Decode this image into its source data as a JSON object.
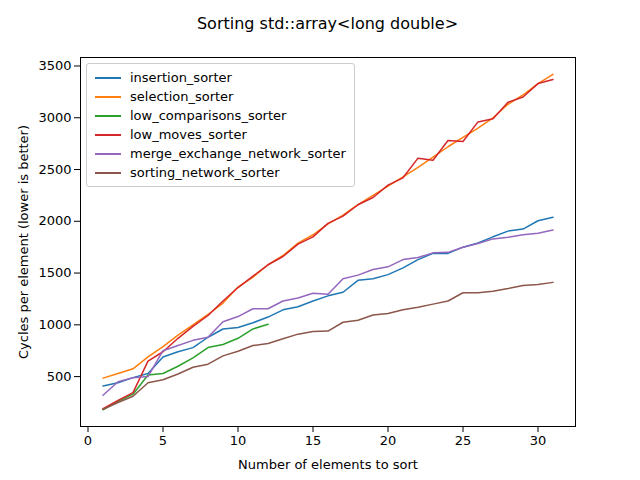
{
  "chart_data": {
    "type": "line",
    "title": "Sorting std::array<long double>",
    "x_label": "Number of elements to sort",
    "y_label": "Cycles per element (lower is better)",
    "x": [
      1,
      2,
      3,
      4,
      5,
      6,
      7,
      8,
      9,
      10,
      11,
      12,
      13,
      14,
      15,
      16,
      17,
      18,
      19,
      20,
      21,
      22,
      23,
      24,
      25,
      26,
      27,
      28,
      29,
      30,
      31
    ],
    "series": [
      {
        "name": "insertion_sorter",
        "color": "#1f77b4",
        "values": [
          410,
          440,
          490,
          530,
          690,
          740,
          780,
          880,
          960,
          975,
          1020,
          1075,
          1145,
          1175,
          1230,
          1280,
          1315,
          1430,
          1445,
          1485,
          1550,
          1630,
          1690,
          1690,
          1750,
          1790,
          1850,
          1905,
          1925,
          2005,
          2040
        ]
      },
      {
        "name": "selection_sorter",
        "color": "#ff7f0e",
        "values": [
          485,
          530,
          575,
          690,
          790,
          900,
          1000,
          1100,
          1210,
          1365,
          1460,
          1580,
          1670,
          1790,
          1870,
          1975,
          2060,
          2160,
          2250,
          2340,
          2430,
          2520,
          2620,
          2720,
          2810,
          2900,
          3000,
          3130,
          3220,
          3330,
          3420
        ]
      },
      {
        "name": "low_comparisons_sorter",
        "color": "#2ca02c",
        "values": [
          180,
          260,
          330,
          515,
          530,
          600,
          680,
          780,
          810,
          870,
          960,
          1005,
          null,
          null,
          null,
          null,
          null,
          null,
          null,
          null,
          null,
          null,
          null,
          null,
          null,
          null,
          null,
          null,
          null,
          null,
          null
        ]
      },
      {
        "name": "low_moves_sorter",
        "color": "#d62728",
        "values": [
          190,
          270,
          345,
          650,
          740,
          870,
          985,
          1090,
          1230,
          1360,
          1470,
          1580,
          1660,
          1780,
          1850,
          1980,
          2050,
          2160,
          2230,
          2350,
          2420,
          2610,
          2590,
          2780,
          2770,
          2960,
          2990,
          3150,
          3200,
          3330,
          3370
        ]
      },
      {
        "name": "merge_exchange_network_sorter",
        "color": "#9467bd",
        "values": [
          320,
          450,
          490,
          500,
          750,
          800,
          850,
          880,
          1030,
          1080,
          1155,
          1155,
          1230,
          1260,
          1305,
          1295,
          1445,
          1480,
          1535,
          1560,
          1630,
          1650,
          1695,
          1700,
          1750,
          1785,
          1830,
          1845,
          1870,
          1885,
          1915
        ]
      },
      {
        "name": "sorting_network_sorter",
        "color": "#8c564b",
        "values": [
          185,
          250,
          310,
          440,
          470,
          525,
          590,
          620,
          700,
          745,
          800,
          820,
          865,
          910,
          935,
          940,
          1025,
          1045,
          1095,
          1110,
          1145,
          1170,
          1200,
          1230,
          1310,
          1310,
          1325,
          1350,
          1380,
          1390,
          1410
        ]
      }
    ],
    "xlim": [
      -0.5,
      32.5
    ],
    "ylim": [
      18,
      3582
    ],
    "xticks": [
      0,
      5,
      10,
      15,
      20,
      25,
      30
    ],
    "yticks": [
      500,
      1000,
      1500,
      2000,
      2500,
      3000,
      3500
    ],
    "legend": "upper left",
    "grid": false
  }
}
